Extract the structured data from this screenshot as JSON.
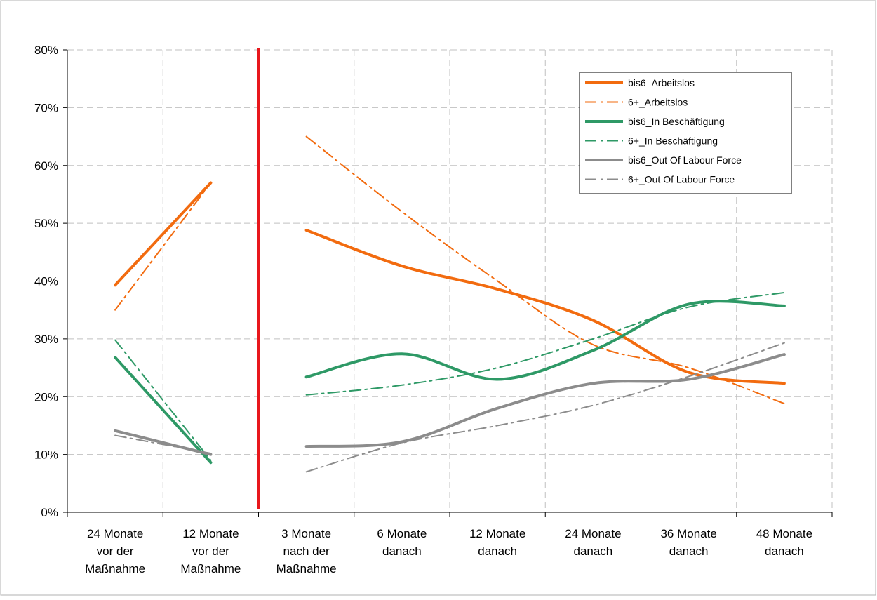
{
  "chart_data": {
    "type": "line",
    "title": "",
    "xlabel": "",
    "ylabel": "",
    "ylim": [
      0,
      80
    ],
    "y_ticks": [
      0,
      10,
      20,
      30,
      40,
      50,
      60,
      70,
      80
    ],
    "y_tick_suffix": "%",
    "grid": true,
    "legend_position": "top-right",
    "categories": [
      "24 Monate vor der Maßnahme",
      "12 Monate vor der Maßnahme",
      "3 Monate nach der Maßnahme",
      "6 Monate danach",
      "12 Monate danach",
      "24 Monate danach",
      "36 Monate danach",
      "48 Monate danach"
    ],
    "category_lines": [
      [
        "24 Monate",
        "vor der",
        "Maßnahme"
      ],
      [
        "12 Monate",
        "vor der",
        "Maßnahme"
      ],
      [
        "3 Monate",
        "nach der",
        "Maßnahme"
      ],
      [
        "6 Monate",
        "danach"
      ],
      [
        "12 Monate",
        "danach"
      ],
      [
        "24 Monate",
        "danach"
      ],
      [
        "36 Monate",
        "danach"
      ],
      [
        "48 Monate",
        "danach"
      ]
    ],
    "divider": {
      "between": [
        1,
        2
      ],
      "color": "#e8171c"
    },
    "series": [
      {
        "name": "bis6_Arbeitslos",
        "color": "#f26b0f",
        "style": "solid",
        "values": [
          39.3,
          57.0,
          48.8,
          42.6,
          38.6,
          33.2,
          24.2,
          22.3
        ]
      },
      {
        "name": "6+_Arbeitslos",
        "color": "#f26b0f",
        "style": "dashdot",
        "values": [
          35.0,
          57.0,
          65.0,
          52.0,
          40.0,
          29.0,
          25.0,
          18.8
        ]
      },
      {
        "name": "bis6_In Beschäftigung",
        "color": "#2e9966",
        "style": "solid",
        "values": [
          26.8,
          8.6,
          23.4,
          27.4,
          23.0,
          28.0,
          36.0,
          35.7
        ]
      },
      {
        "name": "6+_In Beschäftigung",
        "color": "#2e9966",
        "style": "dashdot",
        "values": [
          29.8,
          9.0,
          20.3,
          22.0,
          25.0,
          30.0,
          35.5,
          38.0
        ]
      },
      {
        "name": "bis6_Out Of Labour Force",
        "color": "#8c8c8c",
        "style": "solid",
        "values": [
          14.1,
          10.0,
          11.4,
          12.2,
          18.0,
          22.3,
          23.0,
          27.3
        ]
      },
      {
        "name": "6+_Out Of Labour Force",
        "color": "#8c8c8c",
        "style": "dashdot",
        "values": [
          13.3,
          10.2,
          7.0,
          12.0,
          15.0,
          18.5,
          23.5,
          29.3
        ]
      }
    ]
  }
}
